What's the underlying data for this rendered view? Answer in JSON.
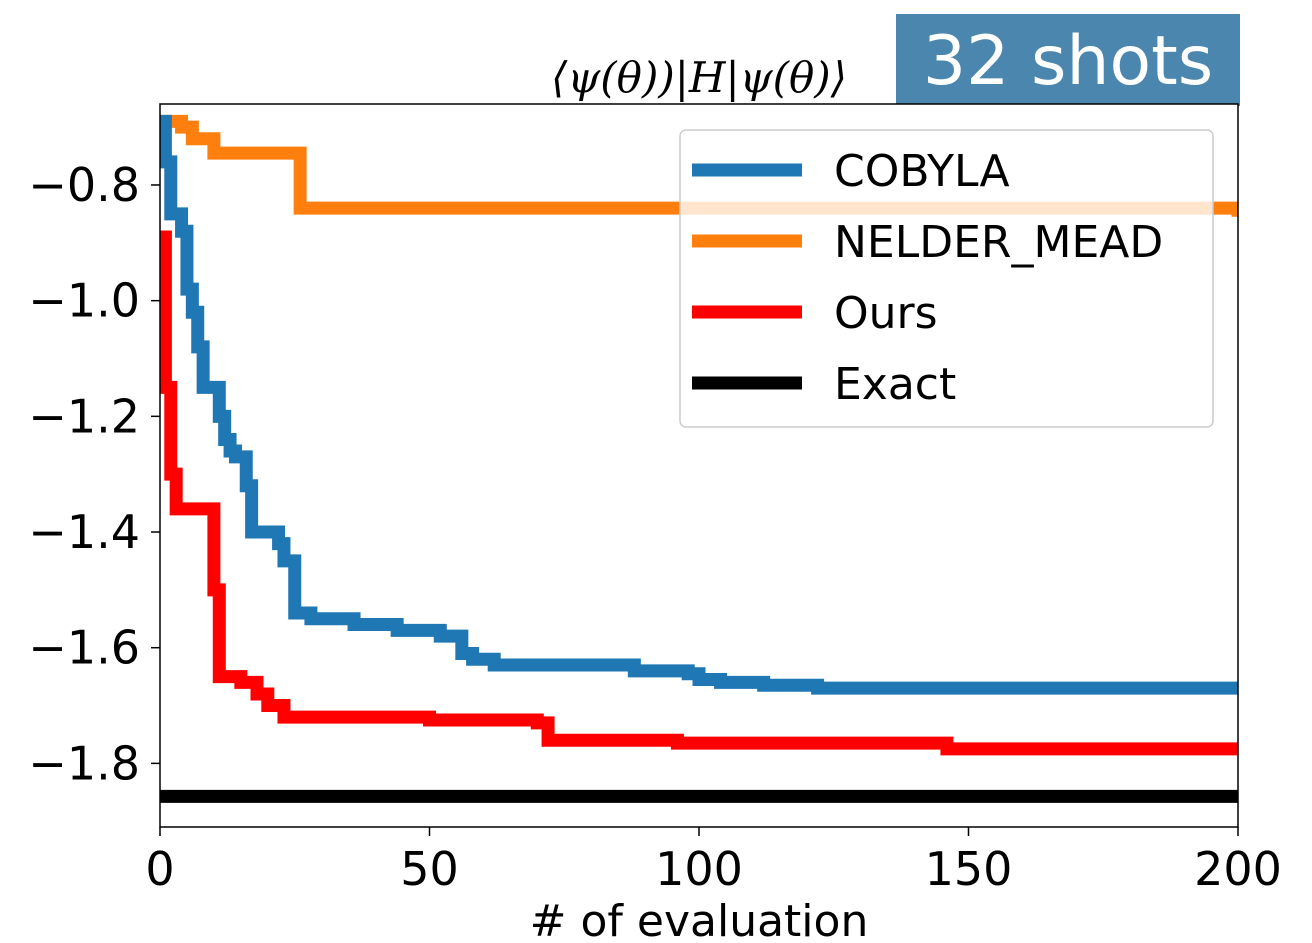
{
  "badge": {
    "text": "32 shots",
    "color": "#4a86ad"
  },
  "chart_data": {
    "type": "line",
    "title": "⟨ψ(θ))|H|ψ(θ)⟩",
    "xlabel": "# of evaluation",
    "ylabel": "",
    "xlim": [
      0,
      200
    ],
    "ylim": [
      -1.91,
      -0.66
    ],
    "xticks": [
      0,
      50,
      100,
      150,
      200
    ],
    "xtick_labels": [
      "0",
      "50",
      "100",
      "150",
      "200"
    ],
    "yticks": [
      -0.8,
      -1.0,
      -1.2,
      -1.4,
      -1.6,
      -1.8
    ],
    "ytick_labels": [
      "−0.8",
      "−1.0",
      "−1.2",
      "−1.4",
      "−1.6",
      "−1.8"
    ],
    "legend_position": "top-right",
    "grid": false,
    "series": [
      {
        "name": "COBYLA",
        "color": "#1f77b4",
        "step": true,
        "x": [
          0,
          1,
          2,
          4,
          5,
          6,
          7,
          8,
          9,
          10,
          11,
          12,
          13,
          14,
          15,
          16,
          17,
          18,
          19,
          20,
          22,
          23,
          25,
          26,
          28,
          30,
          36,
          40,
          44,
          52,
          56,
          58,
          62,
          64,
          88,
          90,
          94,
          98,
          100,
          104,
          112,
          122,
          200
        ],
        "y": [
          -0.69,
          -0.76,
          -0.85,
          -0.88,
          -0.98,
          -1.02,
          -1.08,
          -1.15,
          -1.15,
          -1.15,
          -1.2,
          -1.24,
          -1.26,
          -1.27,
          -1.27,
          -1.32,
          -1.4,
          -1.4,
          -1.4,
          -1.4,
          -1.42,
          -1.45,
          -1.54,
          -1.54,
          -1.55,
          -1.55,
          -1.56,
          -1.56,
          -1.57,
          -1.58,
          -1.61,
          -1.62,
          -1.63,
          -1.63,
          -1.64,
          -1.64,
          -1.64,
          -1.645,
          -1.655,
          -1.66,
          -1.665,
          -1.67,
          -1.67
        ]
      },
      {
        "name": "NELDER_MEAD",
        "color": "#ff7f0e",
        "step": true,
        "x": [
          0,
          4,
          6,
          10,
          25,
          26,
          200
        ],
        "y": [
          -0.69,
          -0.7,
          -0.72,
          -0.745,
          -0.745,
          -0.84,
          -0.855
        ]
      },
      {
        "name": "Ours",
        "color": "#ff0000",
        "step": true,
        "x": [
          0,
          1,
          2,
          3,
          9,
          10,
          11,
          12,
          15,
          18,
          20,
          23,
          26,
          40,
          50,
          60,
          70,
          72,
          96,
          140,
          146,
          200
        ],
        "y": [
          -0.89,
          -1.15,
          -1.3,
          -1.36,
          -1.36,
          -1.5,
          -1.65,
          -1.65,
          -1.66,
          -1.68,
          -1.7,
          -1.72,
          -1.72,
          -1.72,
          -1.725,
          -1.725,
          -1.73,
          -1.76,
          -1.765,
          -1.765,
          -1.775,
          -1.775
        ]
      },
      {
        "name": "Exact",
        "color": "#000000",
        "step": false,
        "x": [
          0,
          200
        ],
        "y": [
          -1.857,
          -1.857
        ]
      }
    ]
  }
}
